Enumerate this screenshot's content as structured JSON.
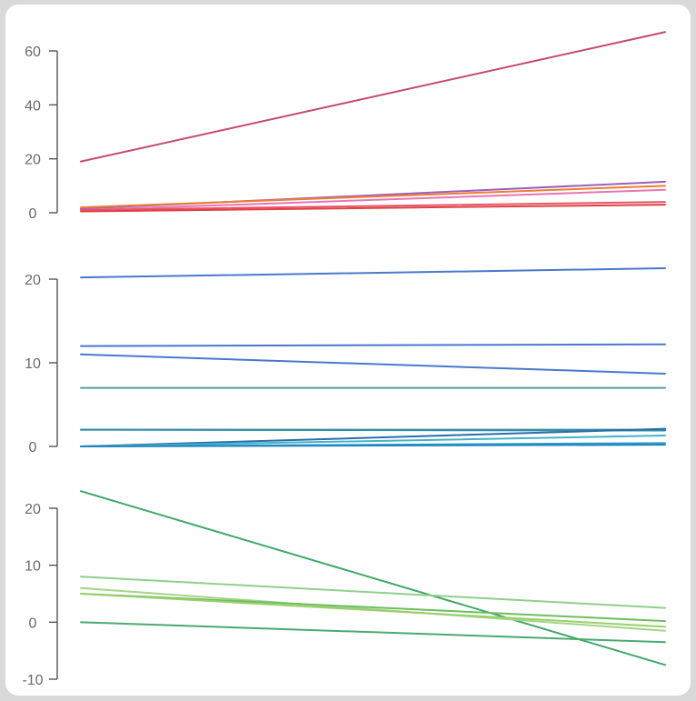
{
  "chart_data": [
    {
      "type": "line",
      "x": [
        0,
        1
      ],
      "ylim": [
        0,
        60
      ],
      "yticks": [
        0,
        20,
        40,
        60
      ],
      "ytick_labels": [
        "0",
        "20",
        "40",
        "60"
      ],
      "series": [
        {
          "values": [
            19,
            67
          ],
          "color": "#c4496e"
        },
        {
          "values": [
            1.5,
            11.5
          ],
          "color": "#9b5fc0"
        },
        {
          "values": [
            2,
            10
          ],
          "color": "#ec7f2e"
        },
        {
          "values": [
            1,
            8.5
          ],
          "color": "#e974b4"
        },
        {
          "values": [
            1,
            4
          ],
          "color": "#e8546a"
        },
        {
          "values": [
            0.5,
            3
          ],
          "color": "#e2403f"
        }
      ]
    },
    {
      "type": "line",
      "x": [
        0,
        1
      ],
      "ylim": [
        0,
        20
      ],
      "yticks": [
        0,
        10,
        20
      ],
      "ytick_labels": [
        "0",
        "10",
        "20"
      ],
      "series": [
        {
          "values": [
            20.2,
            21.3
          ],
          "color": "#4a78cc"
        },
        {
          "values": [
            12.0,
            12.2
          ],
          "color": "#4a78cc"
        },
        {
          "values": [
            11.0,
            8.7
          ],
          "color": "#4a78cc"
        },
        {
          "values": [
            7.0,
            7.0
          ],
          "color": "#5a9aa8"
        },
        {
          "values": [
            2.0,
            2.0
          ],
          "color": "#3b8aa0"
        },
        {
          "values": [
            2.0,
            1.9
          ],
          "color": "#2f8fa8"
        },
        {
          "values": [
            0.0,
            2.1
          ],
          "color": "#2a6fa8"
        },
        {
          "values": [
            0.0,
            1.3
          ],
          "color": "#44b3c9"
        },
        {
          "values": [
            0.0,
            0.4
          ],
          "color": "#2b9ac8"
        },
        {
          "values": [
            0.0,
            0.2
          ],
          "color": "#1f86c0"
        }
      ]
    },
    {
      "type": "line",
      "x": [
        0,
        1
      ],
      "ylim": [
        -10,
        20
      ],
      "yticks": [
        -10,
        0,
        10,
        20
      ],
      "ytick_labels": [
        "-10",
        "0",
        "10",
        "20"
      ],
      "series": [
        {
          "values": [
            23,
            -7.5
          ],
          "color": "#3fa866"
        },
        {
          "values": [
            8,
            2.5
          ],
          "color": "#8fd08c"
        },
        {
          "values": [
            6,
            -1.5
          ],
          "color": "#a4d48a"
        },
        {
          "values": [
            5,
            0.2
          ],
          "color": "#6cbf5e"
        },
        {
          "values": [
            5,
            -0.8
          ],
          "color": "#9bcf6a"
        },
        {
          "values": [
            0,
            -3.5
          ],
          "color": "#4aaa6e"
        }
      ]
    }
  ]
}
